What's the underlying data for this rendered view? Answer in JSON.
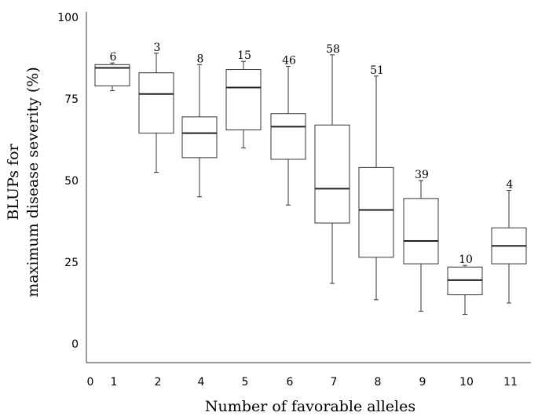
{
  "chart_data": {
    "type": "box",
    "xlabel": "Number of favorable alleles",
    "ylabel_line1": "BLUPs for",
    "ylabel_line2": "maximum disease severity (%)",
    "ylim": [
      0,
      100
    ],
    "yticks": [
      "0",
      "25",
      "50",
      "75",
      "100"
    ],
    "x_origin_label": "0",
    "categories": [
      "1",
      "2",
      "4",
      "5",
      "6",
      "7",
      "8",
      "9",
      "10",
      "11"
    ],
    "counts": [
      "6",
      "3",
      "8",
      "15",
      "46",
      "58",
      "51",
      "39",
      "10",
      "4"
    ],
    "boxes": [
      {
        "min": 77.5,
        "q1": 79,
        "median": 84.5,
        "q3": 85.5,
        "max": 86
      },
      {
        "min": 52.5,
        "q1": 64.5,
        "median": 76.5,
        "q3": 83,
        "max": 89
      },
      {
        "min": 45,
        "q1": 57,
        "median": 64.5,
        "q3": 69.5,
        "max": 85.5
      },
      {
        "min": 60,
        "q1": 65.5,
        "median": 78.5,
        "q3": 84,
        "max": 86.5
      },
      {
        "min": 42.5,
        "q1": 56.5,
        "median": 66.5,
        "q3": 70.5,
        "max": 85
      },
      {
        "min": 18.5,
        "q1": 37,
        "median": 47.5,
        "q3": 67,
        "max": 88.5
      },
      {
        "min": 13.5,
        "q1": 26.5,
        "median": 41,
        "q3": 54,
        "max": 82
      },
      {
        "min": 10,
        "q1": 24.5,
        "median": 31.5,
        "q3": 44.5,
        "max": 50
      },
      {
        "min": 9,
        "q1": 15,
        "median": 19.5,
        "q3": 23.5,
        "max": 24
      },
      {
        "min": 12.5,
        "q1": 24.5,
        "median": 30,
        "q3": 35.5,
        "max": 47
      }
    ]
  }
}
